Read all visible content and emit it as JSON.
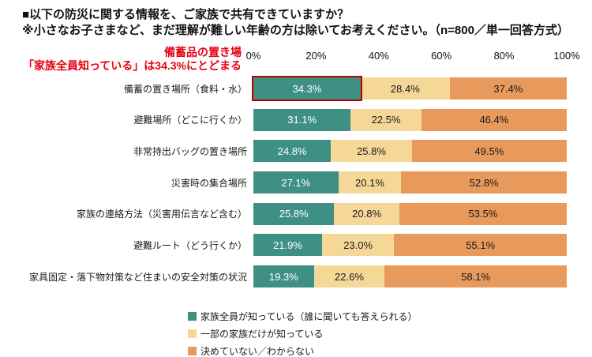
{
  "header": {
    "title": "■以下の防災に関する情報を、ご家族で共有できていますか？",
    "subtitle": "※小さなお子さまなど、まだ理解が難しい年齢の方は除いてお考えください。（n=800／単一回答方式）"
  },
  "annotation": {
    "line1": "備蓄品の置き場",
    "line2": "「家族全員知っている」は34.3%にとどまる",
    "color": "#E60012"
  },
  "chart_data": {
    "type": "bar",
    "orientation": "horizontal",
    "stacked": true,
    "title": "■以下の防災に関する情報を、ご家族で共有できていますか？",
    "subtitle": "※小さなお子さまなど、まだ理解が難しい年齢の方は除いてお考えください。（n=800／単一回答方式）",
    "categories": [
      "備蓄の置き場所（食料・水）",
      "避難場所（どこに行くか）",
      "非常持出バッグの置き場所",
      "災害時の集合場所",
      "家族の連絡方法（災害用伝言など含む）",
      "避難ルート（どう行くか）",
      "家具固定・落下物対策など住まいの安全対策の状況"
    ],
    "series": [
      {
        "name": "家族全員が知っている（誰に聞いても答えられる）",
        "color": "#3F9084",
        "label_color": "#FFFFFF",
        "values": [
          34.3,
          31.1,
          24.8,
          27.1,
          25.8,
          21.9,
          19.3
        ]
      },
      {
        "name": "一部の家族だけが知っている",
        "color": "#F5D897",
        "label_color": "#1A1A1A",
        "values": [
          28.4,
          22.5,
          25.8,
          20.1,
          20.8,
          23.0,
          22.6
        ]
      },
      {
        "name": "決めていない／わからない",
        "color": "#E8995C",
        "label_color": "#1A1A1A",
        "values": [
          37.4,
          46.4,
          49.5,
          52.8,
          53.5,
          55.1,
          58.1
        ]
      }
    ],
    "x_ticks": [
      "0%",
      "20%",
      "40%",
      "60%",
      "80%",
      "100%"
    ],
    "xlim": [
      0,
      100
    ],
    "value_suffix": "%",
    "value_decimals": 1,
    "grid": false,
    "legend_position": "bottom",
    "highlight": {
      "row": 0,
      "series": 0,
      "border_color": "#C00000"
    }
  }
}
